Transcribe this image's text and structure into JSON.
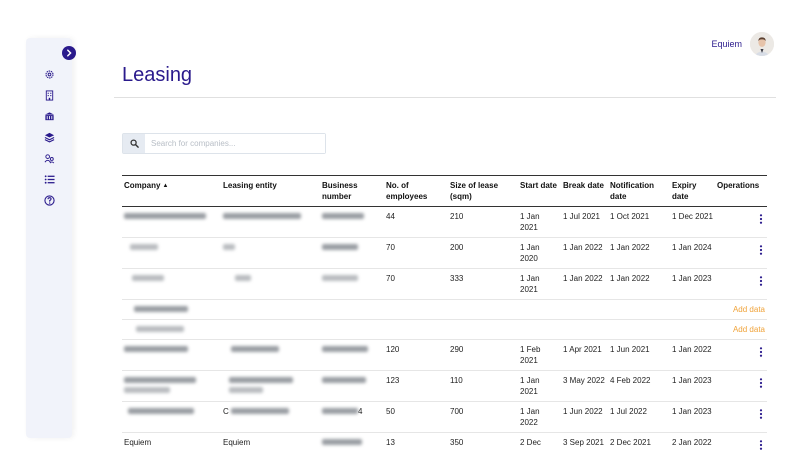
{
  "sidebar": {
    "items": [
      {
        "icon": "gear-icon"
      },
      {
        "icon": "building-icon"
      },
      {
        "icon": "bank-icon"
      },
      {
        "icon": "layers-icon"
      },
      {
        "icon": "users-icon"
      },
      {
        "icon": "list-icon"
      },
      {
        "icon": "help-icon"
      }
    ]
  },
  "user": {
    "name": "Equiem"
  },
  "page": {
    "title": "Leasing"
  },
  "search": {
    "placeholder": "Search for companies..."
  },
  "table": {
    "headers": [
      "Company",
      "Leasing entity",
      "Business number",
      "No. of employees",
      "Size of lease (sqm)",
      "Start date",
      "Break date",
      "Notification date",
      "Expiry date",
      "Operations"
    ],
    "rows": [
      {
        "type": "data",
        "company": "",
        "entity": "",
        "business": "",
        "employees": "44",
        "size": "210",
        "start": "1 Jan 2021",
        "break": "1 Jul 2021",
        "notification": "1 Oct 2021",
        "expiry": "1 Dec 2021"
      },
      {
        "type": "data",
        "company": "",
        "entity": "",
        "business": "",
        "employees": "70",
        "size": "200",
        "start": "1 Jan 2020",
        "break": "1 Jan 2022",
        "notification": "1 Jan 2022",
        "expiry": "1 Jan 2024"
      },
      {
        "type": "data",
        "company": "",
        "entity": "",
        "business": "",
        "employees": "70",
        "size": "333",
        "start": "1 Jan 2021",
        "break": "1 Jan 2022",
        "notification": "1 Jan 2022",
        "expiry": "1 Jan 2023"
      },
      {
        "type": "empty",
        "action": "Add data"
      },
      {
        "type": "empty",
        "action": "Add data"
      },
      {
        "type": "data",
        "company": "",
        "entity": "",
        "business": "",
        "employees": "120",
        "size": "290",
        "start": "1 Feb 2021",
        "break": "1 Apr 2021",
        "notification": "1 Jun 2021",
        "expiry": "1 Jan 2022"
      },
      {
        "type": "data",
        "company": "",
        "entity": "",
        "business": "",
        "employees": "123",
        "size": "110",
        "start": "1 Jan 2021",
        "break": "3 May 2022",
        "notification": "4 Feb 2022",
        "expiry": "1 Jan 2023"
      },
      {
        "type": "data",
        "company": "",
        "entity": "C",
        "business": "4",
        "employees": "50",
        "size": "700",
        "start": "1 Jan 2022",
        "break": "1 Jun 2022",
        "notification": "1 Jul 2022",
        "expiry": "1 Jan 2023"
      },
      {
        "type": "data",
        "company": "Equiem",
        "entity": "Equiem",
        "business": "",
        "employees": "13",
        "size": "350",
        "start": "2 Dec",
        "break": "3 Sep 2021",
        "notification": "2 Dec 2021",
        "expiry": "2 Jan 2022"
      }
    ]
  },
  "colors": {
    "brand": "#2a1a8c",
    "accent": "#f0a33a"
  }
}
